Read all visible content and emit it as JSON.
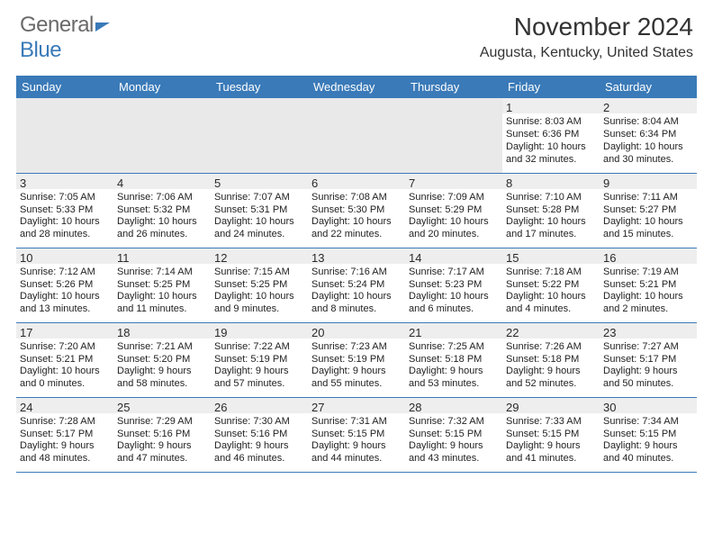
{
  "brand": {
    "part1": "General",
    "part2": "Blue"
  },
  "title": "November 2024",
  "location": "Augusta, Kentucky, United States",
  "colors": {
    "header_bar": "#3a7ab8",
    "row_divider": "#3a7ab8",
    "daynum_band": "#eeeeee",
    "empty_cell": "#e9e9e9",
    "text": "#222222",
    "logo_gray": "#6a6a6a"
  },
  "dow": [
    "Sunday",
    "Monday",
    "Tuesday",
    "Wednesday",
    "Thursday",
    "Friday",
    "Saturday"
  ],
  "weeks": [
    [
      null,
      null,
      null,
      null,
      null,
      {
        "n": "1",
        "sr": "8:03 AM",
        "ss": "6:36 PM",
        "dl": "10 hours and 32 minutes."
      },
      {
        "n": "2",
        "sr": "8:04 AM",
        "ss": "6:34 PM",
        "dl": "10 hours and 30 minutes."
      }
    ],
    [
      {
        "n": "3",
        "sr": "7:05 AM",
        "ss": "5:33 PM",
        "dl": "10 hours and 28 minutes."
      },
      {
        "n": "4",
        "sr": "7:06 AM",
        "ss": "5:32 PM",
        "dl": "10 hours and 26 minutes."
      },
      {
        "n": "5",
        "sr": "7:07 AM",
        "ss": "5:31 PM",
        "dl": "10 hours and 24 minutes."
      },
      {
        "n": "6",
        "sr": "7:08 AM",
        "ss": "5:30 PM",
        "dl": "10 hours and 22 minutes."
      },
      {
        "n": "7",
        "sr": "7:09 AM",
        "ss": "5:29 PM",
        "dl": "10 hours and 20 minutes."
      },
      {
        "n": "8",
        "sr": "7:10 AM",
        "ss": "5:28 PM",
        "dl": "10 hours and 17 minutes."
      },
      {
        "n": "9",
        "sr": "7:11 AM",
        "ss": "5:27 PM",
        "dl": "10 hours and 15 minutes."
      }
    ],
    [
      {
        "n": "10",
        "sr": "7:12 AM",
        "ss": "5:26 PM",
        "dl": "10 hours and 13 minutes."
      },
      {
        "n": "11",
        "sr": "7:14 AM",
        "ss": "5:25 PM",
        "dl": "10 hours and 11 minutes."
      },
      {
        "n": "12",
        "sr": "7:15 AM",
        "ss": "5:25 PM",
        "dl": "10 hours and 9 minutes."
      },
      {
        "n": "13",
        "sr": "7:16 AM",
        "ss": "5:24 PM",
        "dl": "10 hours and 8 minutes."
      },
      {
        "n": "14",
        "sr": "7:17 AM",
        "ss": "5:23 PM",
        "dl": "10 hours and 6 minutes."
      },
      {
        "n": "15",
        "sr": "7:18 AM",
        "ss": "5:22 PM",
        "dl": "10 hours and 4 minutes."
      },
      {
        "n": "16",
        "sr": "7:19 AM",
        "ss": "5:21 PM",
        "dl": "10 hours and 2 minutes."
      }
    ],
    [
      {
        "n": "17",
        "sr": "7:20 AM",
        "ss": "5:21 PM",
        "dl": "10 hours and 0 minutes."
      },
      {
        "n": "18",
        "sr": "7:21 AM",
        "ss": "5:20 PM",
        "dl": "9 hours and 58 minutes."
      },
      {
        "n": "19",
        "sr": "7:22 AM",
        "ss": "5:19 PM",
        "dl": "9 hours and 57 minutes."
      },
      {
        "n": "20",
        "sr": "7:23 AM",
        "ss": "5:19 PM",
        "dl": "9 hours and 55 minutes."
      },
      {
        "n": "21",
        "sr": "7:25 AM",
        "ss": "5:18 PM",
        "dl": "9 hours and 53 minutes."
      },
      {
        "n": "22",
        "sr": "7:26 AM",
        "ss": "5:18 PM",
        "dl": "9 hours and 52 minutes."
      },
      {
        "n": "23",
        "sr": "7:27 AM",
        "ss": "5:17 PM",
        "dl": "9 hours and 50 minutes."
      }
    ],
    [
      {
        "n": "24",
        "sr": "7:28 AM",
        "ss": "5:17 PM",
        "dl": "9 hours and 48 minutes."
      },
      {
        "n": "25",
        "sr": "7:29 AM",
        "ss": "5:16 PM",
        "dl": "9 hours and 47 minutes."
      },
      {
        "n": "26",
        "sr": "7:30 AM",
        "ss": "5:16 PM",
        "dl": "9 hours and 46 minutes."
      },
      {
        "n": "27",
        "sr": "7:31 AM",
        "ss": "5:15 PM",
        "dl": "9 hours and 44 minutes."
      },
      {
        "n": "28",
        "sr": "7:32 AM",
        "ss": "5:15 PM",
        "dl": "9 hours and 43 minutes."
      },
      {
        "n": "29",
        "sr": "7:33 AM",
        "ss": "5:15 PM",
        "dl": "9 hours and 41 minutes."
      },
      {
        "n": "30",
        "sr": "7:34 AM",
        "ss": "5:15 PM",
        "dl": "9 hours and 40 minutes."
      }
    ]
  ],
  "labels": {
    "sunrise": "Sunrise: ",
    "sunset": "Sunset: ",
    "daylight": "Daylight: "
  }
}
